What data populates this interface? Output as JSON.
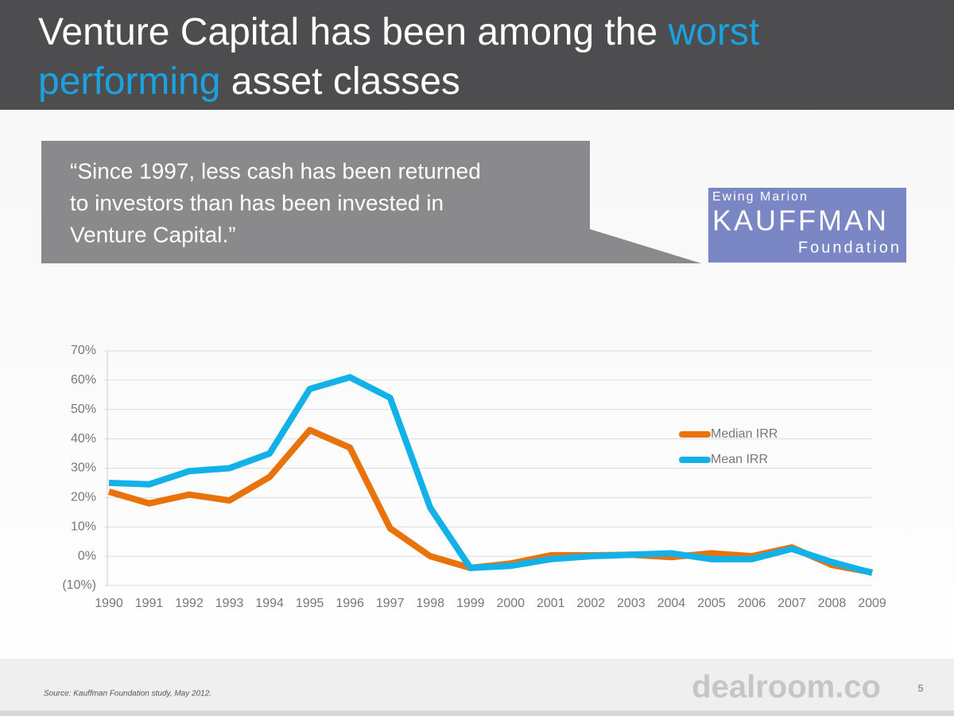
{
  "header": {
    "title_parts": [
      "Venture Capital has been among the ",
      "worst",
      "performing",
      " asset classes"
    ]
  },
  "quote": {
    "lines": [
      "“Since 1997, less cash has been returned",
      "to investors than has been invested in",
      "Venture Capital.”"
    ]
  },
  "logo": {
    "line1": "Ewing Marion",
    "line2": "KAUFFMAN",
    "line3": "Foundation"
  },
  "chart_data": {
    "type": "line",
    "categories": [
      "1990",
      "1991",
      "1992",
      "1993",
      "1994",
      "1995",
      "1996",
      "1997",
      "1998",
      "1999",
      "2000",
      "2001",
      "2002",
      "2003",
      "2004",
      "2005",
      "2006",
      "2007",
      "2008",
      "2009"
    ],
    "series": [
      {
        "name": "Median IRR",
        "color": "#e8730c",
        "values": [
          22,
          18,
          21,
          19,
          27,
          43,
          37,
          9.5,
          0,
          -4,
          -2.5,
          0.3,
          0.3,
          0.5,
          -0.3,
          1,
          0,
          3,
          -3,
          -5.5
        ]
      },
      {
        "name": "Mean IRR",
        "color": "#12b2e8",
        "values": [
          25,
          24.5,
          29,
          30,
          35,
          57,
          61,
          54,
          16.5,
          -4,
          -3.3,
          -1,
          0,
          0.5,
          1,
          -1,
          -1,
          2.5,
          -2,
          -5.7
        ]
      }
    ],
    "ylim": [
      -10,
      70
    ],
    "yticks": [
      {
        "value": -10,
        "label": "(10%)"
      },
      {
        "value": 0,
        "label": "0%"
      },
      {
        "value": 10,
        "label": "10%"
      },
      {
        "value": 20,
        "label": "20%"
      },
      {
        "value": 30,
        "label": "30%"
      },
      {
        "value": 40,
        "label": "40%"
      },
      {
        "value": 50,
        "label": "50%"
      },
      {
        "value": 60,
        "label": "60%"
      },
      {
        "value": 70,
        "label": "70%"
      }
    ],
    "grid": true,
    "legend": "right"
  },
  "footer": {
    "source": "Source: Kauffman Foundation study, May 2012.",
    "brand": "dealroom.co",
    "page_number": 5
  }
}
